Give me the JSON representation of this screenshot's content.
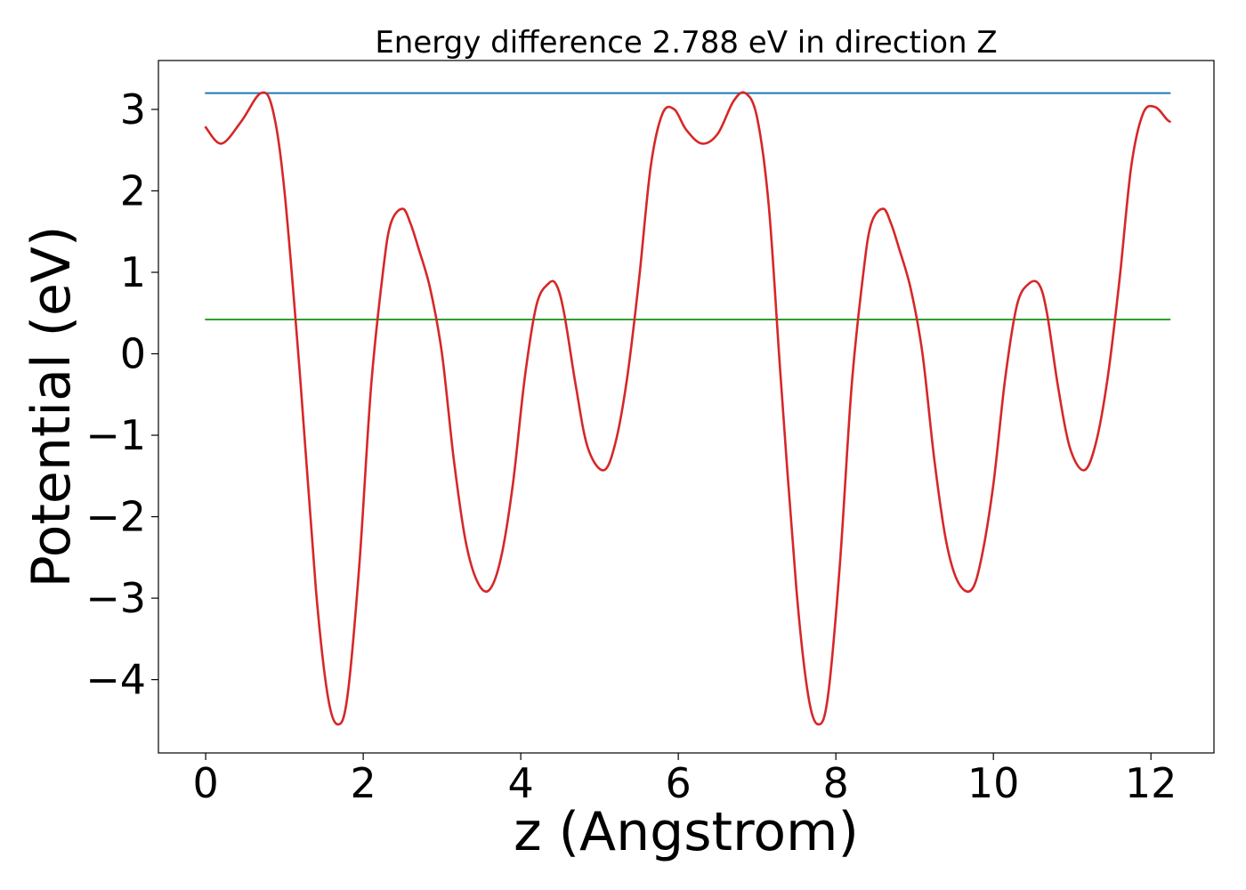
{
  "chart_data": {
    "type": "line",
    "title": "Energy difference 2.788 eV in direction Z",
    "xlabel": "z (Angstrom)",
    "ylabel": "Potential (eV)",
    "xlim": [
      -0.6,
      12.8
    ],
    "ylim": [
      -4.9,
      3.6
    ],
    "xticks": [
      0,
      2,
      4,
      6,
      8,
      10,
      12
    ],
    "xtick_labels": [
      "0",
      "2",
      "4",
      "6",
      "8",
      "10",
      "12"
    ],
    "yticks": [
      -4,
      -3,
      -2,
      -1,
      0,
      1,
      2,
      3
    ],
    "ytick_labels": [
      "−4",
      "−3",
      "−2",
      "−1",
      "0",
      "1",
      "2",
      "3"
    ],
    "grid": false,
    "legend": "none",
    "series": [
      {
        "color": "#1f77b4",
        "x": [
          0,
          12.24
        ],
        "y": [
          3.2,
          3.2
        ]
      },
      {
        "color": "#2ca02c",
        "x": [
          0,
          12.24
        ],
        "y": [
          0.42,
          0.42
        ]
      },
      {
        "color": "#d62728",
        "x": [
          0,
          0.2,
          0.45,
          0.7,
          0.85,
          1.0,
          1.2,
          1.4,
          1.55,
          1.68,
          1.8,
          1.95,
          2.1,
          2.25,
          2.35,
          2.5,
          2.6,
          2.7,
          2.85,
          3.0,
          3.15,
          3.3,
          3.45,
          3.6,
          3.75,
          3.9,
          4.05,
          4.2,
          4.35,
          4.45,
          4.55,
          4.7,
          4.85,
          5.05,
          5.2,
          5.35,
          5.5,
          5.65,
          5.8,
          5.95,
          6.1,
          6.3,
          6.5,
          6.7,
          6.85,
          7.0,
          7.15,
          7.3,
          7.5,
          7.65,
          7.78,
          7.9,
          8.05,
          8.2,
          8.35,
          8.45,
          8.6,
          8.7,
          8.8,
          8.95,
          9.1,
          9.25,
          9.4,
          9.55,
          9.72,
          9.85,
          10.0,
          10.15,
          10.3,
          10.45,
          10.58,
          10.68,
          10.82,
          10.97,
          11.15,
          11.3,
          11.45,
          11.6,
          11.75,
          11.9,
          12.05,
          12.2,
          12.24
        ],
        "y": [
          2.78,
          2.58,
          2.85,
          3.2,
          3.0,
          2.0,
          -0.3,
          -2.9,
          -4.2,
          -4.55,
          -4.2,
          -2.6,
          -0.4,
          1.0,
          1.6,
          1.78,
          1.6,
          1.3,
          0.8,
          0.0,
          -1.3,
          -2.3,
          -2.8,
          -2.9,
          -2.5,
          -1.6,
          -0.3,
          0.6,
          0.86,
          0.85,
          0.5,
          -0.4,
          -1.15,
          -1.43,
          -1.1,
          -0.3,
          0.9,
          2.3,
          2.95,
          3.0,
          2.75,
          2.58,
          2.7,
          3.1,
          3.2,
          2.9,
          1.8,
          -0.3,
          -2.9,
          -4.2,
          -4.55,
          -4.2,
          -2.6,
          -0.4,
          1.0,
          1.6,
          1.78,
          1.6,
          1.3,
          0.8,
          0.0,
          -1.3,
          -2.3,
          -2.8,
          -2.9,
          -2.5,
          -1.6,
          -0.3,
          0.6,
          0.86,
          0.85,
          0.5,
          -0.4,
          -1.15,
          -1.43,
          -1.1,
          -0.3,
          0.9,
          2.3,
          2.95,
          3.03,
          2.88,
          2.85
        ]
      }
    ]
  }
}
